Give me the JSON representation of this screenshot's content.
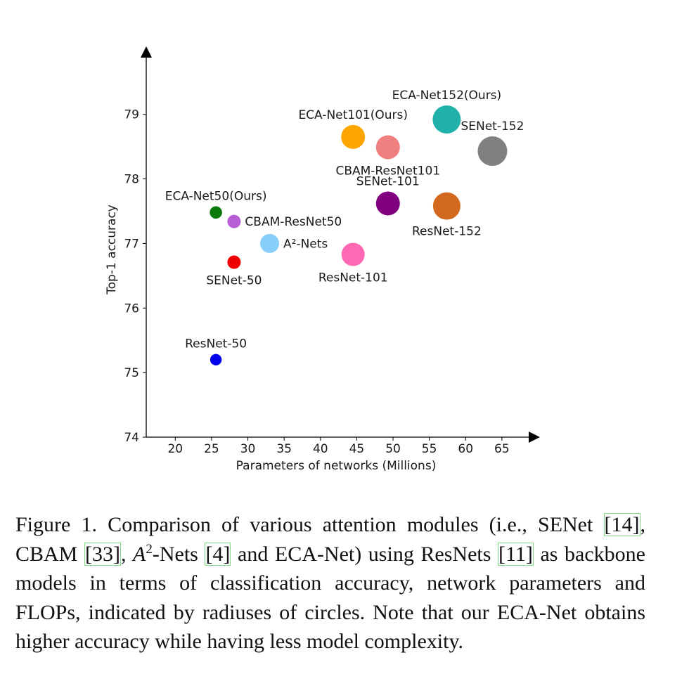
{
  "chart_data": {
    "type": "scatter",
    "xlabel": "Parameters of networks (Millions)",
    "ylabel": "Top-1 accuracy",
    "xlim": [
      16,
      68.5
    ],
    "ylim": [
      74,
      79.9
    ],
    "xticks": [
      20,
      25,
      30,
      35,
      40,
      45,
      50,
      55,
      60,
      65
    ],
    "yticks": [
      74,
      75,
      76,
      77,
      78,
      79
    ],
    "points": [
      {
        "name": "ResNet-50",
        "x": 25.6,
        "y": 75.2,
        "size": 8.2,
        "color": "#0000ee",
        "label_pos": "above"
      },
      {
        "name": "SENet-50",
        "x": 28.1,
        "y": 76.71,
        "size": 9.5,
        "color": "#ee0000",
        "label_pos": "below"
      },
      {
        "name": "CBAM-ResNet50",
        "x": 28.1,
        "y": 77.34,
        "size": 9.5,
        "color": "#b85fd6",
        "label_pos": "right"
      },
      {
        "name": "ECA-Net50(Ours)",
        "x": 25.6,
        "y": 77.48,
        "size": 8.8,
        "color": "#0b7a0b",
        "label_pos": "above"
      },
      {
        "name": "A²-Nets",
        "x": 33.0,
        "y": 77.0,
        "size": 13.5,
        "color": "#87cefa",
        "label_pos": "right"
      },
      {
        "name": "ResNet-101",
        "x": 44.5,
        "y": 76.83,
        "size": 16.5,
        "color": "#ff69b4",
        "label_pos": "below"
      },
      {
        "name": "ECA-Net101(Ours)",
        "x": 44.5,
        "y": 78.65,
        "size": 17.0,
        "color": "#ffa500",
        "label_pos": "above"
      },
      {
        "name": "CBAM-ResNet101",
        "x": 49.3,
        "y": 78.49,
        "size": 17.0,
        "color": "#f08080",
        "label_pos": "below"
      },
      {
        "name": "SENet-101",
        "x": 49.3,
        "y": 77.62,
        "size": 17.0,
        "color": "#800080",
        "label_pos": "above"
      },
      {
        "name": "ResNet-152",
        "x": 57.4,
        "y": 77.58,
        "size": 19.5,
        "color": "#d2691e",
        "label_pos": "below"
      },
      {
        "name": "ECA-Net152(Ours)",
        "x": 57.4,
        "y": 78.92,
        "size": 20.0,
        "color": "#20b2aa",
        "label_pos": "above"
      },
      {
        "name": "SENet-152",
        "x": 63.7,
        "y": 78.43,
        "size": 21.0,
        "color": "#808080",
        "label_pos": "above"
      }
    ]
  },
  "caption": {
    "prefix": "Figure 1. Comparison of various attention modules (i.e., SENet ",
    "ref1": "[14]",
    "t1": ", CBAM ",
    "ref2": "[33]",
    "t2": ", ",
    "math_a": "A",
    "math_sup": "2",
    "t3": "-Nets ",
    "ref3": "[4]",
    "t4": " and ECA-Net) using ResNets ",
    "ref4": "[11]",
    "t5": " as backbone models in terms of classification accuracy, network parameters and FLOPs, indicated by radiuses of circles. Note that our ECA-Net obtains higher accuracy while having less model complexity."
  }
}
